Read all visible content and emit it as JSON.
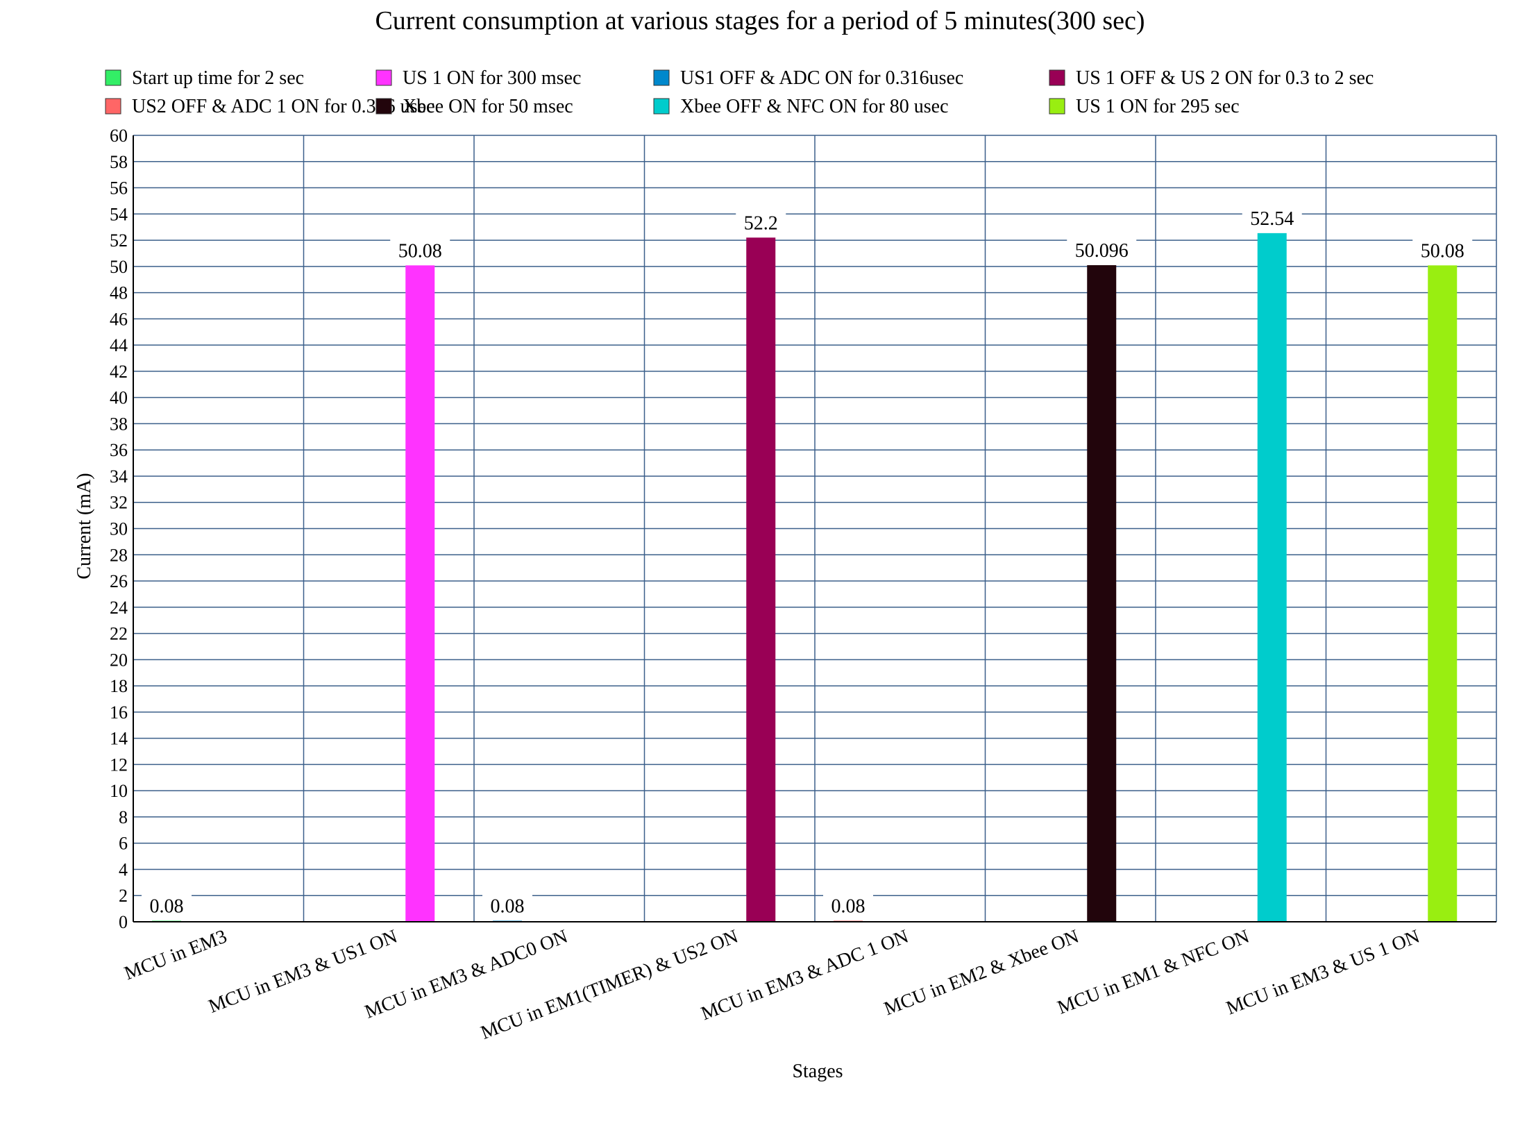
{
  "chart_data": {
    "type": "bar",
    "title": "Current consumption at various stages for a period of 5 minutes(300 sec)",
    "xlabel": "Stages",
    "ylabel": "Current (mA)",
    "ylim": [
      0,
      60
    ],
    "ytick_step": 2,
    "grid": true,
    "legend_position": "top",
    "categories": [
      "MCU in EM3",
      "MCU in EM3 & US1 ON",
      "MCU in EM3 & ADC0 ON",
      "MCU in EM1(TIMER) & US2 ON",
      "MCU in EM3 & ADC 1 ON",
      "MCU in EM2 & Xbee ON",
      "MCU in EM1 & NFC ON",
      "MCU in EM3 & US 1 ON"
    ],
    "series": [
      {
        "name": "Start up time for 2 sec",
        "color": "#33ee66",
        "values": [
          0.08,
          null,
          null,
          null,
          null,
          null,
          null,
          null
        ],
        "labels": [
          "0.08",
          "",
          "",
          "",
          "",
          "",
          "",
          ""
        ]
      },
      {
        "name": "US 1 ON for 300 msec",
        "color": "#ff33ff",
        "values": [
          null,
          50.08,
          null,
          null,
          null,
          null,
          null,
          null
        ],
        "labels": [
          "",
          "50.08",
          "",
          "",
          "",
          "",
          "",
          ""
        ]
      },
      {
        "name": "US1 OFF & ADC ON for 0.316usec",
        "color": "#0088cc",
        "values": [
          null,
          null,
          0.08,
          null,
          null,
          null,
          null,
          null
        ],
        "labels": [
          "",
          "",
          "0.08",
          "",
          "",
          "",
          "",
          ""
        ]
      },
      {
        "name": "US 1 OFF & US 2 ON for 0.3 to 2 sec",
        "color": "#990055",
        "values": [
          null,
          null,
          null,
          52.2,
          null,
          null,
          null,
          null
        ],
        "labels": [
          "",
          "",
          "",
          "52.2",
          "",
          "",
          "",
          ""
        ]
      },
      {
        "name": "US2 OFF & ADC 1 ON for 0.316 usec",
        "color": "#ff6666",
        "values": [
          null,
          null,
          null,
          null,
          0.08,
          null,
          null,
          null
        ],
        "labels": [
          "",
          "",
          "",
          "",
          "0.08",
          "",
          "",
          ""
        ]
      },
      {
        "name": "Xbee ON for 50 msec",
        "color": "#22050c",
        "values": [
          null,
          null,
          null,
          null,
          null,
          50.096,
          null,
          null
        ],
        "labels": [
          "",
          "",
          "",
          "",
          "",
          "50.096",
          "",
          ""
        ]
      },
      {
        "name": "Xbee OFF & NFC ON for 80 usec",
        "color": "#00cccc",
        "values": [
          null,
          null,
          null,
          null,
          null,
          null,
          52.54,
          null
        ],
        "labels": [
          "",
          "",
          "",
          "",
          "",
          "",
          "52.54",
          ""
        ]
      },
      {
        "name": "US 1 ON for 295 sec",
        "color": "#99ee11",
        "values": [
          null,
          null,
          null,
          null,
          null,
          null,
          null,
          50.08
        ],
        "labels": [
          "",
          "",
          "",
          "",
          "",
          "",
          "",
          "50.08"
        ]
      }
    ]
  }
}
